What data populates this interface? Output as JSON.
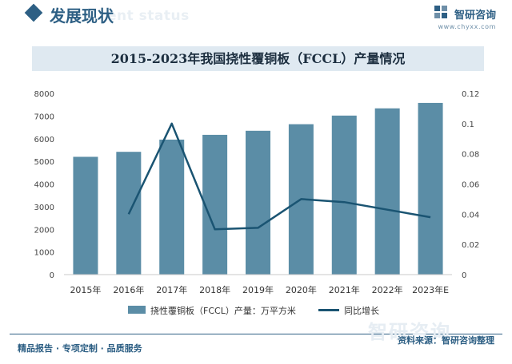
{
  "header": {
    "section_title": "发展现状",
    "ghost_text": "ent status",
    "brand_name": "智研咨询",
    "brand_url": "www.chyxx.com"
  },
  "chart_data": {
    "type": "bar",
    "title": "2015-2023年我国挠性覆铜板（FCCL）产量情况",
    "categories": [
      "2015年",
      "2016年",
      "2017年",
      "2018年",
      "2019年",
      "2020年",
      "2021年",
      "2022年",
      "2023年E"
    ],
    "series": [
      {
        "name": "挠性覆铜板（FCCL）产量：万平方米",
        "type": "bar",
        "axis": "left",
        "values": [
          5200,
          5420,
          5960,
          6170,
          6350,
          6640,
          7020,
          7340,
          7580
        ]
      },
      {
        "name": "同比增长",
        "type": "line",
        "axis": "right",
        "values": [
          null,
          0.04,
          0.1,
          0.03,
          0.031,
          0.05,
          0.048,
          0.043,
          0.038
        ]
      }
    ],
    "y_left": {
      "min": 0,
      "max": 8000,
      "ticks": [
        0,
        1000,
        2000,
        3000,
        4000,
        5000,
        6000,
        7000,
        8000
      ],
      "tick_labels": [
        "0",
        "1000",
        "2000",
        "3000",
        "4000",
        "5000",
        "6000",
        "7000",
        "8000"
      ]
    },
    "y_right": {
      "min": 0,
      "max": 0.12,
      "ticks": [
        0,
        0.02,
        0.04,
        0.06,
        0.08,
        0.1,
        0.12
      ],
      "tick_labels": [
        "0",
        "0.02",
        "0.04",
        "0.06",
        "0.08",
        "0.1",
        "0.12"
      ]
    },
    "grid": false,
    "legend": "bottom",
    "colors": {
      "bar": "#5b8da6",
      "line": "#1a5472"
    }
  },
  "footer": {
    "tagline": "精品报告 · 专项定制 · 品质服务",
    "source": "资料来源：智研咨询整理",
    "ghost_brand": "智研咨询"
  }
}
